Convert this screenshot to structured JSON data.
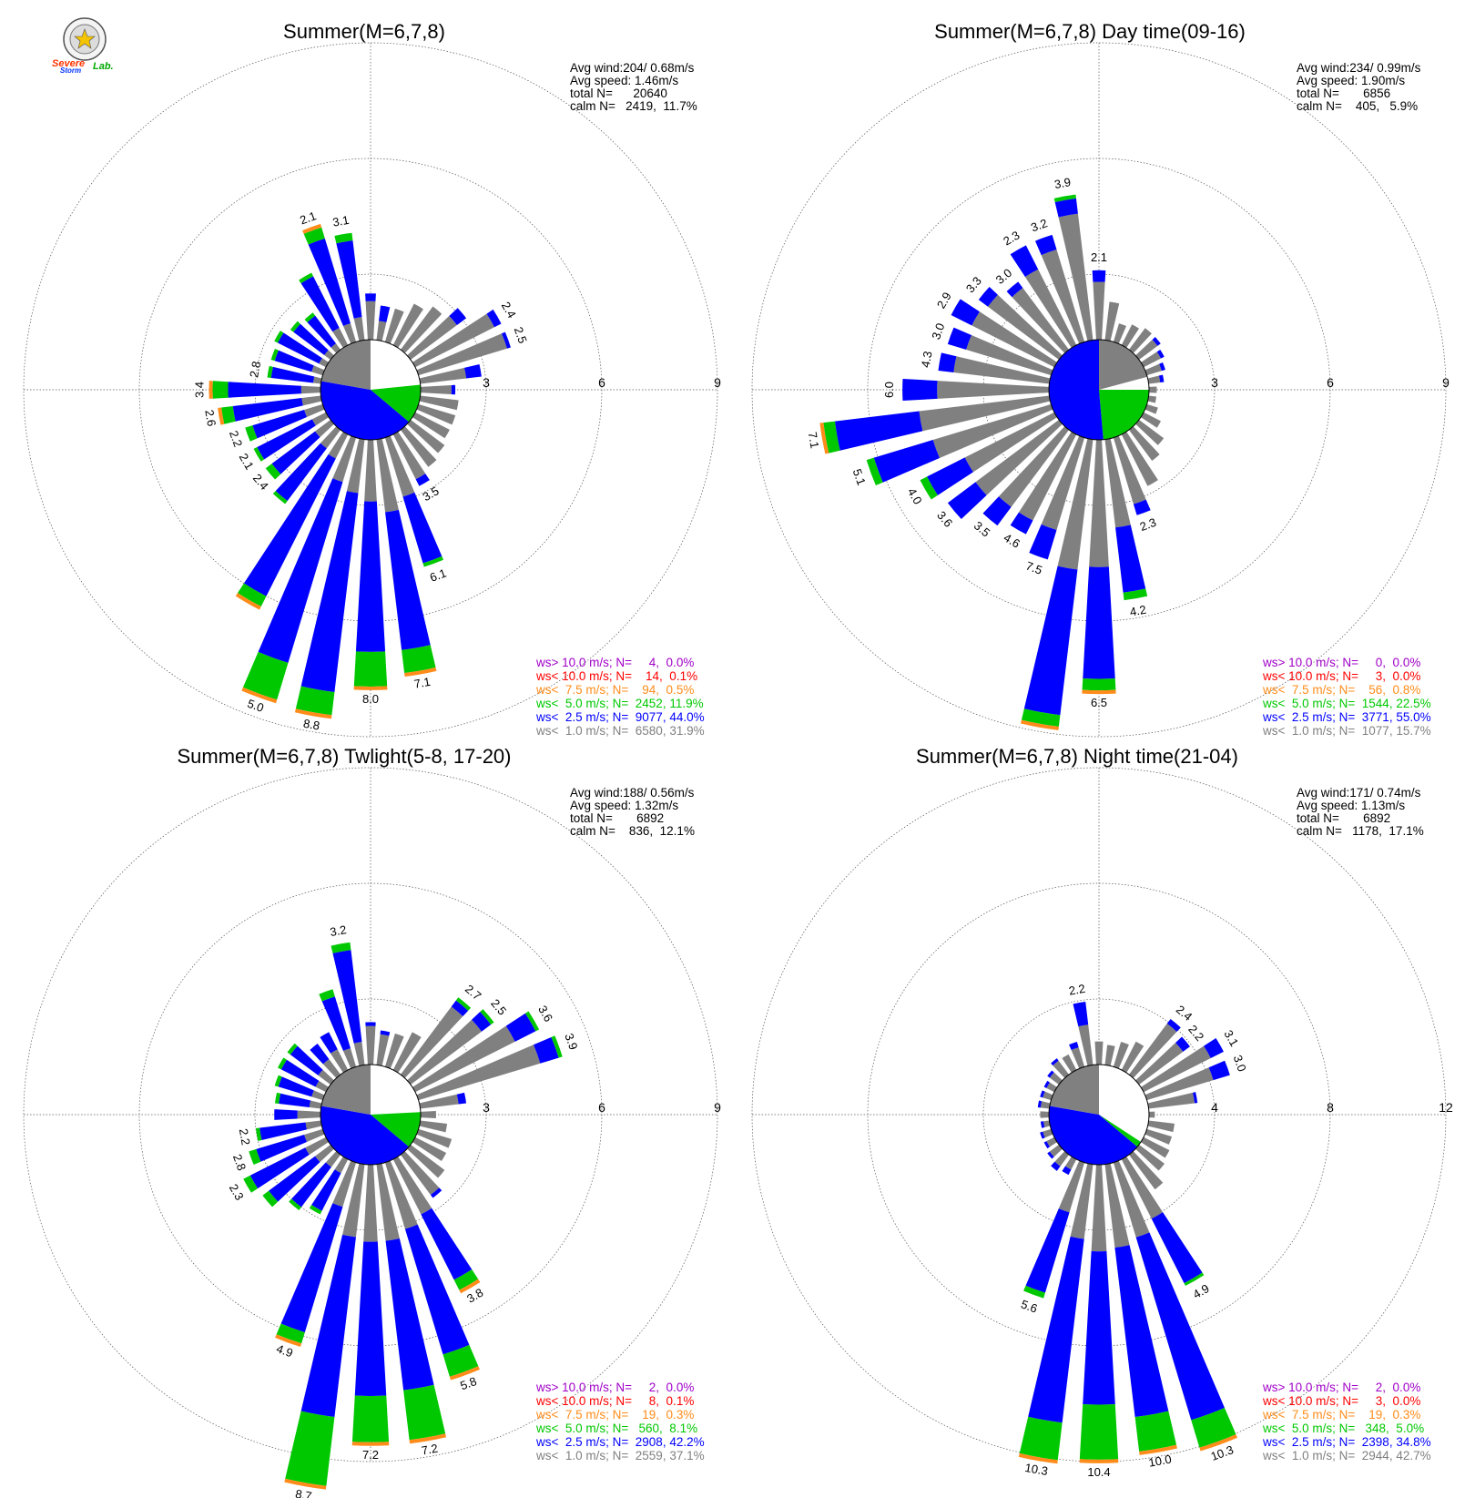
{
  "logo": {
    "word1": "Severe",
    "word2": "Storm",
    "word3": "Lab."
  },
  "colors": {
    "gray": "#808080",
    "blue": "#0000ff",
    "green": "#00c800",
    "orange": "#ff8c1a",
    "red": "#ff0000",
    "purple": "#a000c8",
    "black": "#000000"
  },
  "legend_colors": [
    "#a000c8",
    "#ff0000",
    "#ff8c1a",
    "#00c800",
    "#0000ff",
    "#808080"
  ],
  "chart_data": [
    {
      "type": "wind-rose",
      "title": "Summer(M=6,7,8)",
      "stats": [
        "Avg wind:204/ 0.68m/s",
        "Avg speed: 1.46m/s",
        "total N=      20640",
        "calm N=   2419,  11.7%"
      ],
      "ring_labels": [
        "3",
        "6",
        "9"
      ],
      "rmax": 9,
      "calm_pct": 11.7,
      "legend": [
        "ws> 10.0 m/s; N=     4,  0.0%",
        "ws< 10.0 m/s; N=    14,  0.1%",
        "ws<  7.5 m/s; N=    94,  0.5%",
        "ws<  5.0 m/s; N=  2452, 11.9%",
        "ws<  2.5 m/s; N=  9077, 44.0%",
        "ws<  1.0 m/s; N=  6580, 31.9%"
      ],
      "sector_width_deg": 10,
      "values_unit": "percent per sector",
      "directions": [
        0,
        10,
        20,
        30,
        40,
        50,
        60,
        70,
        80,
        90,
        100,
        110,
        120,
        130,
        140,
        150,
        160,
        170,
        180,
        190,
        200,
        210,
        220,
        230,
        240,
        250,
        260,
        270,
        280,
        290,
        300,
        310,
        320,
        330,
        340,
        350
      ],
      "bars": [
        [
          1.0,
          0.2,
          0.0
        ],
        [
          0.5,
          0.4,
          0.0
        ],
        [
          0.9,
          0.0,
          0.0
        ],
        [
          1.2,
          0.0,
          0.0
        ],
        [
          1.4,
          0.0,
          0.0
        ],
        [
          1.5,
          0.3,
          0.0
        ],
        [
          2.3,
          0.2,
          0.0
        ],
        [
          2.4,
          0.1,
          0.0
        ],
        [
          1.2,
          0.4,
          0.0
        ],
        [
          0.8,
          0.1,
          0.0
        ],
        [
          1.0,
          0.0,
          0.0
        ],
        [
          1.0,
          0.0,
          0.0
        ],
        [
          1.0,
          0.0,
          0.0
        ],
        [
          1.1,
          0.0,
          0.0
        ],
        [
          1.2,
          0.0,
          0.0
        ],
        [
          1.3,
          0.2,
          0.0
        ],
        [
          1.6,
          1.8,
          0.1
        ],
        [
          1.9,
          3.6,
          0.6
        ],
        [
          1.6,
          3.9,
          0.9
        ],
        [
          1.4,
          5.2,
          0.6
        ],
        [
          1.2,
          4.9,
          1.0
        ],
        [
          0.7,
          4.0,
          0.3
        ],
        [
          0.6,
          1.7,
          0.1
        ],
        [
          0.5,
          1.4,
          0.2
        ],
        [
          0.4,
          1.6,
          0.1
        ],
        [
          0.5,
          1.4,
          0.2
        ],
        [
          0.5,
          1.8,
          0.3
        ],
        [
          0.5,
          1.9,
          0.4
        ],
        [
          0.2,
          1.1,
          0.1
        ],
        [
          0.3,
          1.0,
          0.1
        ],
        [
          0.2,
          1.2,
          0.1
        ],
        [
          0.2,
          1.0,
          0.1
        ],
        [
          0.2,
          0.9,
          0.1
        ],
        [
          0.5,
          1.5,
          0.1
        ],
        [
          0.5,
          2.3,
          0.3
        ],
        [
          0.6,
          2.0,
          0.2
        ]
      ],
      "bar_labels": [
        {
          "dir": 340,
          "text": "2.1"
        },
        {
          "dir": 350,
          "text": "3.1"
        },
        {
          "dir": 60,
          "text": "2.4"
        },
        {
          "dir": 70,
          "text": "2.5"
        },
        {
          "dir": 150,
          "text": "3.5"
        },
        {
          "dir": 160,
          "text": "6.1"
        },
        {
          "dir": 170,
          "text": "7.1"
        },
        {
          "dir": 180,
          "text": "8.0"
        },
        {
          "dir": 190,
          "text": "8.8"
        },
        {
          "dir": 200,
          "text": "5.0"
        },
        {
          "dir": 230,
          "text": "2.4"
        },
        {
          "dir": 240,
          "text": "2.1"
        },
        {
          "dir": 250,
          "text": "2.2"
        },
        {
          "dir": 260,
          "text": "2.6"
        },
        {
          "dir": 270,
          "text": "3.4"
        },
        {
          "dir": 280,
          "text": "2.8"
        }
      ]
    },
    {
      "type": "wind-rose",
      "title": "Summer(M=6,7,8) Day time(09-16)",
      "stats": [
        "Avg wind:234/ 0.99m/s",
        "Avg speed: 1.90m/s",
        "total N=       6856",
        "calm N=    405,   5.9%"
      ],
      "ring_labels": [
        "3",
        "6",
        "9"
      ],
      "rmax": 9,
      "calm_pct": 5.9,
      "legend": [
        "ws> 10.0 m/s; N=     0,  0.0%",
        "ws< 10.0 m/s; N=     3,  0.0%",
        "ws<  7.5 m/s; N=    56,  0.8%",
        "ws<  5.0 m/s; N=  1544, 22.5%",
        "ws<  2.5 m/s; N=  3771, 55.0%",
        "ws<  1.0 m/s; N=  1077, 15.7%"
      ],
      "sector_width_deg": 10,
      "values_unit": "percent per sector",
      "directions": [
        0,
        10,
        20,
        30,
        40,
        50,
        60,
        70,
        80,
        90,
        100,
        110,
        120,
        130,
        140,
        150,
        160,
        170,
        180,
        190,
        200,
        210,
        220,
        230,
        240,
        250,
        260,
        270,
        280,
        290,
        300,
        310,
        320,
        330,
        340,
        350
      ],
      "bars": [
        [
          1.5,
          0.3,
          0.0
        ],
        [
          1.0,
          0.0,
          0.0
        ],
        [
          0.5,
          0.0,
          0.0
        ],
        [
          0.6,
          0.0,
          0.0
        ],
        [
          0.7,
          0.0,
          0.0
        ],
        [
          0.6,
          0.1,
          0.0
        ],
        [
          0.5,
          0.1,
          0.0
        ],
        [
          0.4,
          0.1,
          0.0
        ],
        [
          0.3,
          0.1,
          0.0
        ],
        [
          0.2,
          0.0,
          0.0
        ],
        [
          0.2,
          0.0,
          0.0
        ],
        [
          0.3,
          0.0,
          0.0
        ],
        [
          0.5,
          0.0,
          0.0
        ],
        [
          0.8,
          0.0,
          0.0
        ],
        [
          1.0,
          0.0,
          0.0
        ],
        [
          1.5,
          0.0,
          0.0
        ],
        [
          1.8,
          0.3,
          0.0
        ],
        [
          2.3,
          1.7,
          0.2
        ],
        [
          3.3,
          2.9,
          0.3
        ],
        [
          3.4,
          3.8,
          0.3
        ],
        [
          2.5,
          0.8,
          0.0
        ],
        [
          2.5,
          0.4,
          0.0
        ],
        [
          2.5,
          0.6,
          0.0
        ],
        [
          2.7,
          0.9,
          0.0
        ],
        [
          2.6,
          1.1,
          0.2
        ],
        [
          3.2,
          1.6,
          0.2
        ],
        [
          3.4,
          2.2,
          0.3
        ],
        [
          2.9,
          0.9,
          0.0
        ],
        [
          2.5,
          0.4,
          0.0
        ],
        [
          2.3,
          0.5,
          0.0
        ],
        [
          2.4,
          0.6,
          0.0
        ],
        [
          2.3,
          0.3,
          0.0
        ],
        [
          2.0,
          0.2,
          0.0
        ],
        [
          2.2,
          0.7,
          0.0
        ],
        [
          2.5,
          0.4,
          0.0
        ],
        [
          3.3,
          0.4,
          0.1
        ]
      ],
      "bar_labels": [
        {
          "dir": 0,
          "text": "2.1"
        },
        {
          "dir": 340,
          "text": "3.2"
        },
        {
          "dir": 350,
          "text": "3.9"
        },
        {
          "dir": 330,
          "text": "2.3"
        },
        {
          "dir": 320,
          "text": "3.0"
        },
        {
          "dir": 310,
          "text": "3.3"
        },
        {
          "dir": 300,
          "text": "2.9"
        },
        {
          "dir": 290,
          "text": "3.0"
        },
        {
          "dir": 280,
          "text": "4.3"
        },
        {
          "dir": 270,
          "text": "6.0"
        },
        {
          "dir": 260,
          "text": "7.1"
        },
        {
          "dir": 250,
          "text": "5.1"
        },
        {
          "dir": 240,
          "text": "4.0"
        },
        {
          "dir": 230,
          "text": "3.6"
        },
        {
          "dir": 220,
          "text": "3.5"
        },
        {
          "dir": 210,
          "text": "4.6"
        },
        {
          "dir": 200,
          "text": "7.5"
        },
        {
          "dir": 180,
          "text": "6.5"
        },
        {
          "dir": 170,
          "text": "4.2"
        },
        {
          "dir": 160,
          "text": "2.3"
        }
      ]
    },
    {
      "type": "wind-rose",
      "title": "Summer(M=6,7,8) Twlight(5-8, 17-20)",
      "stats": [
        "Avg wind:188/ 0.56m/s",
        "Avg speed: 1.32m/s",
        "total N=       6892",
        "calm N=    836,  12.1%"
      ],
      "ring_labels": [
        "3",
        "6",
        "9"
      ],
      "rmax": 9,
      "calm_pct": 12.1,
      "legend": [
        "ws> 10.0 m/s; N=     2,  0.0%",
        "ws< 10.0 m/s; N=     8,  0.1%",
        "ws<  7.5 m/s; N=    19,  0.3%",
        "ws<  5.0 m/s; N=   560,  8.1%",
        "ws<  2.5 m/s; N=  2908, 42.2%",
        "ws<  1.0 m/s; N=  2559, 37.1%"
      ],
      "sector_width_deg": 10,
      "values_unit": "percent per sector",
      "directions": [
        0,
        10,
        20,
        30,
        40,
        50,
        60,
        70,
        80,
        90,
        100,
        110,
        120,
        130,
        140,
        150,
        160,
        170,
        180,
        190,
        200,
        210,
        220,
        230,
        240,
        250,
        260,
        270,
        280,
        290,
        300,
        310,
        320,
        330,
        340,
        350
      ],
      "bars": [
        [
          1.0,
          0.1,
          0.0
        ],
        [
          0.8,
          0.1,
          0.0
        ],
        [
          0.9,
          0.0,
          0.0
        ],
        [
          1.1,
          0.0,
          0.0
        ],
        [
          2.2,
          0.2,
          0.1
        ],
        [
          2.3,
          0.3,
          0.1
        ],
        [
          2.9,
          0.6,
          0.1
        ],
        [
          3.3,
          0.5,
          0.1
        ],
        [
          1.0,
          0.2,
          0.0
        ],
        [
          0.4,
          0.0,
          0.0
        ],
        [
          0.7,
          0.0,
          0.0
        ],
        [
          0.9,
          0.0,
          0.0
        ],
        [
          0.9,
          0.0,
          0.0
        ],
        [
          1.1,
          0.0,
          0.0
        ],
        [
          1.3,
          0.1,
          0.0
        ],
        [
          1.6,
          1.9,
          0.3
        ],
        [
          1.8,
          3.4,
          0.6
        ],
        [
          2.0,
          3.9,
          1.3
        ],
        [
          2.0,
          4.0,
          1.2
        ],
        [
          1.9,
          4.7,
          1.8
        ],
        [
          1.2,
          3.4,
          0.3
        ],
        [
          0.4,
          1.1,
          0.1
        ],
        [
          0.4,
          1.3,
          0.1
        ],
        [
          0.5,
          1.5,
          0.2
        ],
        [
          0.6,
          1.6,
          0.2
        ],
        [
          0.5,
          1.3,
          0.2
        ],
        [
          0.4,
          1.2,
          0.1
        ],
        [
          0.6,
          0.6,
          0.0
        ],
        [
          0.3,
          0.8,
          0.1
        ],
        [
          0.3,
          0.9,
          0.1
        ],
        [
          0.3,
          1.0,
          0.1
        ],
        [
          0.4,
          0.9,
          0.1
        ],
        [
          0.5,
          0.5,
          0.0
        ],
        [
          0.6,
          0.5,
          0.0
        ],
        [
          0.5,
          1.4,
          0.2
        ],
        [
          0.6,
          2.4,
          0.2
        ]
      ],
      "bar_labels": [
        {
          "dir": 350,
          "text": "3.2"
        },
        {
          "dir": 40,
          "text": "2.7"
        },
        {
          "dir": 50,
          "text": "2.5"
        },
        {
          "dir": 60,
          "text": "3.6"
        },
        {
          "dir": 70,
          "text": "3.9"
        },
        {
          "dir": 150,
          "text": "3.8"
        },
        {
          "dir": 160,
          "text": "5.8"
        },
        {
          "dir": 170,
          "text": "7.2"
        },
        {
          "dir": 180,
          "text": "7.2"
        },
        {
          "dir": 190,
          "text": "8.7"
        },
        {
          "dir": 200,
          "text": "4.9"
        },
        {
          "dir": 240,
          "text": "2.3"
        },
        {
          "dir": 250,
          "text": "2.8"
        },
        {
          "dir": 260,
          "text": "2.2"
        }
      ]
    },
    {
      "type": "wind-rose",
      "title": "Summer(M=6,7,8) Night time(21-04)",
      "stats": [
        "Avg wind:171/ 0.74m/s",
        "Avg speed: 1.13m/s",
        "total N=       6892",
        "calm N=   1178,  17.1%"
      ],
      "ring_labels": [
        "4",
        "8",
        "12"
      ],
      "rmax": 12,
      "calm_pct": 17.1,
      "legend": [
        "ws> 10.0 m/s; N=     2,  0.0%",
        "ws< 10.0 m/s; N=     3,  0.0%",
        "ws<  7.5 m/s; N=    19,  0.3%",
        "ws<  5.0 m/s; N=   348,  5.0%",
        "ws<  2.5 m/s; N=  2398, 34.8%",
        "ws<  1.0 m/s; N=  2944, 42.7%"
      ],
      "sector_width_deg": 10,
      "values_unit": "percent per sector",
      "directions": [
        0,
        10,
        20,
        30,
        40,
        50,
        60,
        70,
        80,
        90,
        100,
        110,
        120,
        130,
        140,
        150,
        160,
        170,
        180,
        190,
        200,
        210,
        220,
        230,
        240,
        250,
        260,
        270,
        280,
        290,
        300,
        310,
        320,
        330,
        340,
        350
      ],
      "bars": [
        [
          0.8,
          0.0,
          0.0
        ],
        [
          0.7,
          0.0,
          0.0
        ],
        [
          0.9,
          0.0,
          0.0
        ],
        [
          1.1,
          0.0,
          0.0
        ],
        [
          2.2,
          0.2,
          0.0
        ],
        [
          1.9,
          0.3,
          0.0
        ],
        [
          2.6,
          0.5,
          0.0
        ],
        [
          2.4,
          0.6,
          0.0
        ],
        [
          1.6,
          0.1,
          0.0
        ],
        [
          0.2,
          0.0,
          0.0
        ],
        [
          0.9,
          0.0,
          0.0
        ],
        [
          0.9,
          0.0,
          0.0
        ],
        [
          1.0,
          0.0,
          0.0
        ],
        [
          1.1,
          0.0,
          0.0
        ],
        [
          1.5,
          0.0,
          0.0
        ],
        [
          2.3,
          2.5,
          0.1
        ],
        [
          2.7,
          6.6,
          1.0
        ],
        [
          2.9,
          5.9,
          1.2
        ],
        [
          3.0,
          5.3,
          1.9
        ],
        [
          2.6,
          6.4,
          1.3
        ],
        [
          1.8,
          2.9,
          0.2
        ],
        [
          0.4,
          0.2,
          0.0
        ],
        [
          0.5,
          0.2,
          0.0
        ],
        [
          0.4,
          0.1,
          0.0
        ],
        [
          0.3,
          0.1,
          0.0
        ],
        [
          0.3,
          0.1,
          0.0
        ],
        [
          0.2,
          0.1,
          0.0
        ],
        [
          0.3,
          0.0,
          0.0
        ],
        [
          0.3,
          0.1,
          0.0
        ],
        [
          0.3,
          0.1,
          0.0
        ],
        [
          0.3,
          0.1,
          0.0
        ],
        [
          0.4,
          0.1,
          0.0
        ],
        [
          0.6,
          0.1,
          0.0
        ],
        [
          0.6,
          0.0,
          0.0
        ],
        [
          0.7,
          0.2,
          0.0
        ],
        [
          1.4,
          0.8,
          0.0
        ]
      ],
      "bar_labels": [
        {
          "dir": 350,
          "text": "2.2"
        },
        {
          "dir": 40,
          "text": "2.4"
        },
        {
          "dir": 50,
          "text": "2.2"
        },
        {
          "dir": 60,
          "text": "3.1"
        },
        {
          "dir": 70,
          "text": "3.0"
        },
        {
          "dir": 150,
          "text": "4.9"
        },
        {
          "dir": 160,
          "text": "10.3"
        },
        {
          "dir": 170,
          "text": "10.0"
        },
        {
          "dir": 180,
          "text": "10.4"
        },
        {
          "dir": 190,
          "text": "10.3"
        },
        {
          "dir": 200,
          "text": "5.6"
        }
      ]
    }
  ]
}
